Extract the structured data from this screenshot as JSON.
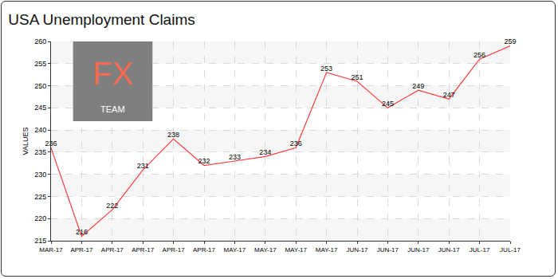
{
  "chart_data": {
    "type": "line",
    "title": "USA Unemployment Claims",
    "y_label": "VALUES",
    "categories": [
      "MAR-17",
      "APR-17",
      "APR-17",
      "APR-17",
      "APR-17",
      "APR-17",
      "MAY-17",
      "MAY-17",
      "MAY-17",
      "MAY-17",
      "JUN-17",
      "JUN-17",
      "JUN-17",
      "JUN-17",
      "JUL-17",
      "JUL-17"
    ],
    "values": [
      236,
      216,
      222,
      231,
      238,
      232,
      233,
      234,
      236,
      253,
      251,
      245,
      249,
      247,
      256,
      259
    ],
    "color": "#ff3b3b",
    "ylim": [
      215,
      260
    ],
    "yticks": [
      215,
      220,
      225,
      230,
      235,
      240,
      245,
      250,
      255,
      260
    ],
    "grid": true,
    "data_labels": true,
    "annotations": [
      "FX",
      "TEAM"
    ]
  }
}
